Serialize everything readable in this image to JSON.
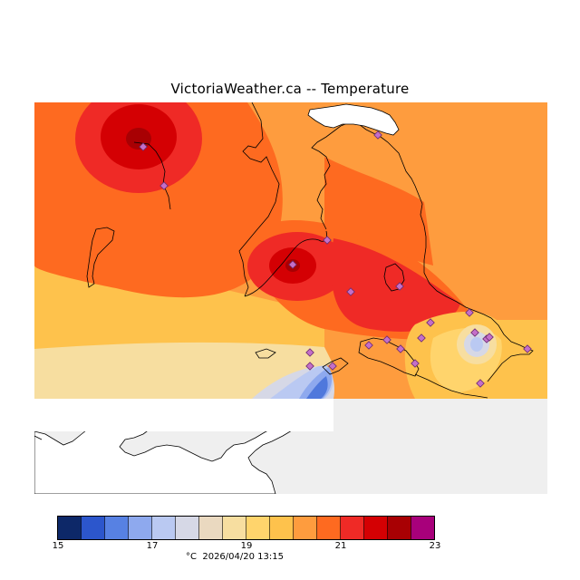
{
  "header": {
    "title": "VictoriaWeather.ca -- Temperature"
  },
  "legend": {
    "ticks": [
      "15",
      "17",
      "19",
      "21",
      "23"
    ],
    "colors": [
      "#0d2868",
      "#2c56cc",
      "#5781e3",
      "#8ea9ee",
      "#bac9f2",
      "#d6d8e6",
      "#ead9c0",
      "#f7dea0",
      "#ffd46c",
      "#fec24c",
      "#fe9c3e",
      "#fe6a20",
      "#ef2a26",
      "#d40003",
      "#a80003",
      "#a8007b"
    ]
  },
  "footer": {
    "unit": "°C",
    "timestamp": "2026/04/20 13:15"
  },
  "map": {
    "zone_colors": {
      "sea_gray": "#efefef",
      "land_white": "#ffffff",
      "t_15": "#4f78dc",
      "t_16": "#8ea9ee",
      "t_17": "#d6d8e6",
      "t_18": "#f7dea0",
      "t_19": "#ffd46c",
      "t_20": "#fec24c",
      "t_20_5": "#fe9c3e",
      "t_21": "#fe6a20",
      "t_22": "#ef2a26",
      "t_22_5": "#d40003",
      "t_23": "#a80003"
    },
    "station_color": "#c46fc8"
  }
}
